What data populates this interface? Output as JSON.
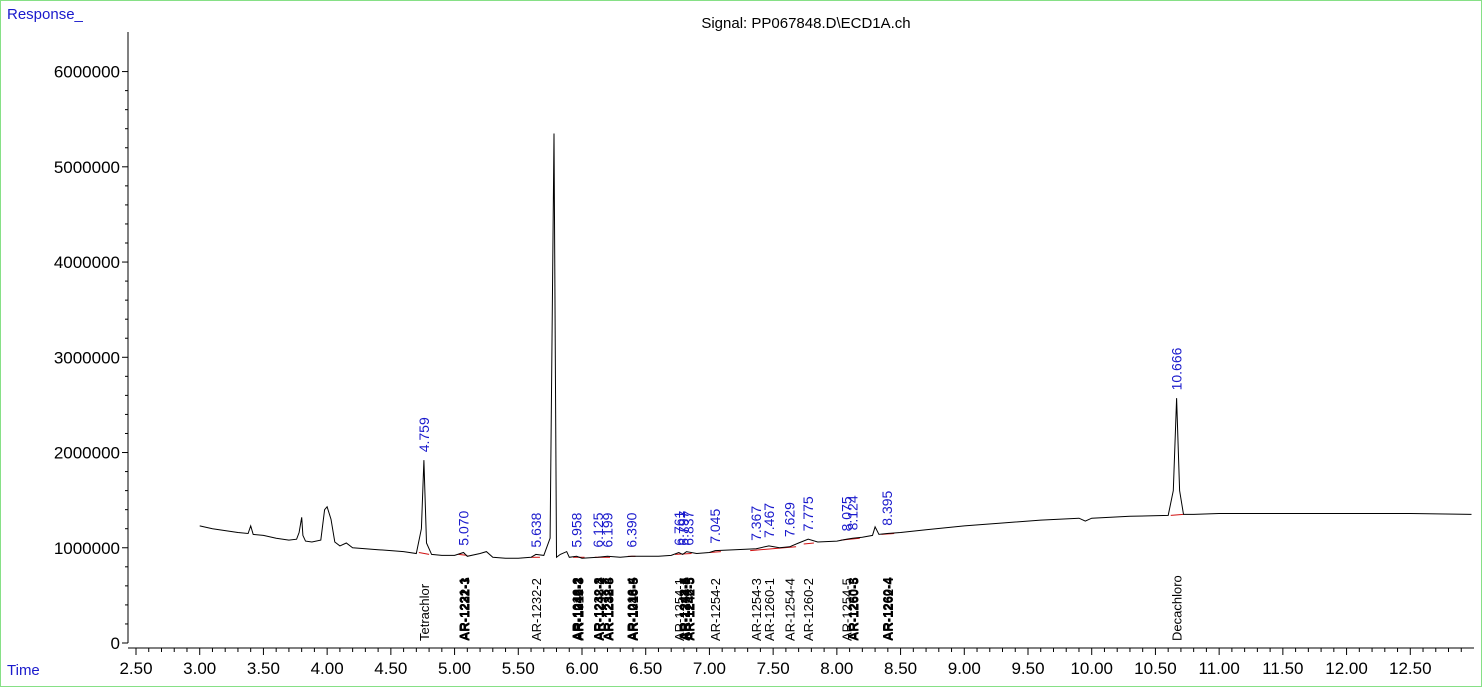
{
  "title": "Signal: PP067848.D\\ECD1A.ch",
  "chart_data": {
    "type": "line",
    "title": "Signal: PP067848.D\\ECD1A.ch",
    "ylabel": "Response_",
    "xlabel": "Time",
    "xlim": [
      2.5,
      13.0
    ],
    "ylim": [
      0,
      6300000
    ],
    "x_ticks": [
      "2.50",
      "3.00",
      "3.50",
      "4.00",
      "4.50",
      "5.00",
      "5.50",
      "6.00",
      "6.50",
      "7.00",
      "7.50",
      "8.00",
      "8.50",
      "9.00",
      "9.50",
      "10.00",
      "10.50",
      "11.00",
      "11.50",
      "12.00",
      "12.50"
    ],
    "y_ticks": [
      "0",
      "1000000",
      "2000000",
      "3000000",
      "4000000",
      "5000000",
      "6000000"
    ],
    "colors": {
      "trace": "#000000",
      "baseline": "#d01010",
      "peak_label": "#1a1acc",
      "compound_label": "#000000",
      "frame": "#86e086"
    },
    "series": [
      {
        "x": [
          3.0,
          3.1,
          3.2,
          3.3,
          3.38,
          3.4,
          3.42,
          3.5,
          3.6,
          3.7,
          3.76,
          3.78,
          3.8,
          3.81,
          3.83,
          3.88,
          3.95,
          3.98,
          4.0,
          4.03,
          4.06,
          4.1,
          4.15,
          4.2,
          4.3,
          4.4,
          4.5,
          4.6,
          4.7,
          4.74,
          4.759,
          4.78,
          4.82,
          4.9,
          5.0,
          5.07,
          5.1,
          5.2,
          5.25,
          5.3,
          5.4,
          5.5,
          5.6,
          5.638,
          5.7,
          5.75,
          5.78,
          5.8,
          5.83,
          5.88,
          5.9,
          5.958,
          6.0,
          6.125,
          6.199,
          6.3,
          6.39,
          6.5,
          6.6,
          6.7,
          6.76,
          6.79,
          6.82,
          6.9,
          7.0,
          7.045,
          7.2,
          7.367,
          7.467,
          7.55,
          7.629,
          7.7,
          7.775,
          7.85,
          8.0,
          8.075,
          8.124,
          8.2,
          8.28,
          8.3,
          8.33,
          8.395,
          8.5,
          8.7,
          9.0,
          9.3,
          9.6,
          9.9,
          9.95,
          10.0,
          10.3,
          10.6,
          10.64,
          10.666,
          10.69,
          10.72,
          10.8,
          11.0,
          11.5,
          12.0,
          12.5,
          12.98
        ],
        "y": [
          1230000,
          1200000,
          1180000,
          1160000,
          1150000,
          1230000,
          1140000,
          1130000,
          1100000,
          1080000,
          1090000,
          1160000,
          1320000,
          1130000,
          1070000,
          1060000,
          1080000,
          1400000,
          1430000,
          1300000,
          1060000,
          1020000,
          1050000,
          1000000,
          990000,
          980000,
          970000,
          960000,
          940000,
          1200000,
          1920000,
          1050000,
          930000,
          920000,
          920000,
          950000,
          910000,
          940000,
          960000,
          900000,
          890000,
          890000,
          900000,
          930000,
          920000,
          1100000,
          5350000,
          900000,
          930000,
          960000,
          900000,
          910000,
          890000,
          900000,
          910000,
          900000,
          910000,
          910000,
          910000,
          920000,
          950000,
          930000,
          960000,
          940000,
          950000,
          970000,
          980000,
          990000,
          1020000,
          1000000,
          1010000,
          1050000,
          1090000,
          1060000,
          1070000,
          1090000,
          1100000,
          1110000,
          1130000,
          1220000,
          1140000,
          1150000,
          1160000,
          1190000,
          1230000,
          1260000,
          1290000,
          1310000,
          1280000,
          1310000,
          1330000,
          1340000,
          1600000,
          2570000,
          1600000,
          1350000,
          1350000,
          1360000,
          1360000,
          1360000,
          1360000,
          1350000
        ]
      }
    ],
    "baselines": [
      [
        4.72,
        4.8,
        950000,
        930000
      ],
      [
        5.03,
        5.1,
        930000,
        920000
      ],
      [
        5.6,
        5.67,
        900000,
        900000
      ],
      [
        5.93,
        6.02,
        900000,
        900000
      ],
      [
        6.1,
        6.22,
        900000,
        900000
      ],
      [
        6.36,
        6.42,
        910000,
        910000
      ],
      [
        6.73,
        6.86,
        930000,
        940000
      ],
      [
        7.0,
        7.09,
        950000,
        960000
      ],
      [
        7.32,
        7.68,
        970000,
        1010000
      ],
      [
        7.74,
        7.82,
        1040000,
        1050000
      ],
      [
        8.03,
        8.18,
        1080000,
        1100000
      ],
      [
        8.35,
        8.45,
        1140000,
        1150000
      ],
      [
        10.62,
        10.72,
        1340000,
        1350000
      ]
    ],
    "peak_labels": [
      {
        "x": 4.759,
        "label": "4.759",
        "y": 1960000
      },
      {
        "x": 5.07,
        "label": "5.070",
        "y": 980000
      },
      {
        "x": 5.638,
        "label": "5.638",
        "y": 960000
      },
      {
        "x": 5.958,
        "label": "5.958",
        "y": 960000
      },
      {
        "x": 6.125,
        "label": "6.125",
        "y": 960000
      },
      {
        "x": 6.199,
        "label": "6.199",
        "y": 960000
      },
      {
        "x": 6.39,
        "label": "6.390",
        "y": 960000
      },
      {
        "x": 6.761,
        "label": "6.761",
        "y": 980000
      },
      {
        "x": 6.797,
        "label": "6.797",
        "y": 980000
      },
      {
        "x": 6.837,
        "label": "6.837",
        "y": 980000
      },
      {
        "x": 7.045,
        "label": "7.045",
        "y": 1000000
      },
      {
        "x": 7.367,
        "label": "7.367",
        "y": 1030000
      },
      {
        "x": 7.467,
        "label": "7.467",
        "y": 1060000
      },
      {
        "x": 7.629,
        "label": "7.629",
        "y": 1070000
      },
      {
        "x": 7.775,
        "label": "7.775",
        "y": 1130000
      },
      {
        "x": 8.075,
        "label": "8.075",
        "y": 1130000
      },
      {
        "x": 8.124,
        "label": "8.124",
        "y": 1140000
      },
      {
        "x": 8.395,
        "label": "8.395",
        "y": 1190000
      },
      {
        "x": 10.666,
        "label": "10.666",
        "y": 2610000
      }
    ],
    "compound_labels": [
      {
        "x": 4.759,
        "labels": [
          "Tetrachlor"
        ],
        "bold": false
      },
      {
        "x": 5.07,
        "labels": [
          "AR-1221-1",
          "AR-1232-1",
          "AR-1222-3"
        ],
        "bold": true
      },
      {
        "x": 5.638,
        "labels": [
          "AR-1232-2"
        ],
        "bold": false
      },
      {
        "x": 5.958,
        "labels": [
          "AR-1016-2",
          "AR-1248-1",
          "AR-1242-3",
          "AR-1016-3"
        ],
        "bold": true
      },
      {
        "x": 6.125,
        "labels": [
          "AR-1232-3",
          "AR-1242-4",
          "AR-1248-2"
        ],
        "bold": true
      },
      {
        "x": 6.199,
        "labels": [
          "AR-1232-4",
          "AR-1248-3",
          "AR-1232-5"
        ],
        "bold": true
      },
      {
        "x": 6.39,
        "labels": [
          "AR-1016-4",
          "AR-1248-5",
          "AR-1016-5"
        ],
        "bold": true
      },
      {
        "x": 6.761,
        "labels": [
          "AR-1254-1"
        ],
        "bold": false
      },
      {
        "x": 6.797,
        "labels": [
          "AR-1248-4",
          "AR-1242-5",
          "AR-1254-4"
        ],
        "bold": true
      },
      {
        "x": 6.837,
        "labels": [
          "AR-1248-5",
          "AR-1242-5"
        ],
        "bold": true
      },
      {
        "x": 7.045,
        "labels": [
          "AR-1254-2"
        ],
        "bold": false
      },
      {
        "x": 7.367,
        "labels": [
          "AR-1254-3"
        ],
        "bold": false
      },
      {
        "x": 7.467,
        "labels": [
          "AR-1260-1"
        ],
        "bold": false
      },
      {
        "x": 7.629,
        "labels": [
          "AR-1254-4"
        ],
        "bold": false
      },
      {
        "x": 7.775,
        "labels": [
          "AR-1260-2"
        ],
        "bold": false
      },
      {
        "x": 8.075,
        "labels": [
          "AR-1254-5"
        ],
        "bold": false
      },
      {
        "x": 8.124,
        "labels": [
          "AR-1260-3",
          "AR-1260-5"
        ],
        "bold": true
      },
      {
        "x": 8.395,
        "labels": [
          "AR-1260-4",
          "AR-1262-4"
        ],
        "bold": true
      },
      {
        "x": 10.666,
        "labels": [
          "Decachloro"
        ],
        "bold": false
      }
    ]
  }
}
